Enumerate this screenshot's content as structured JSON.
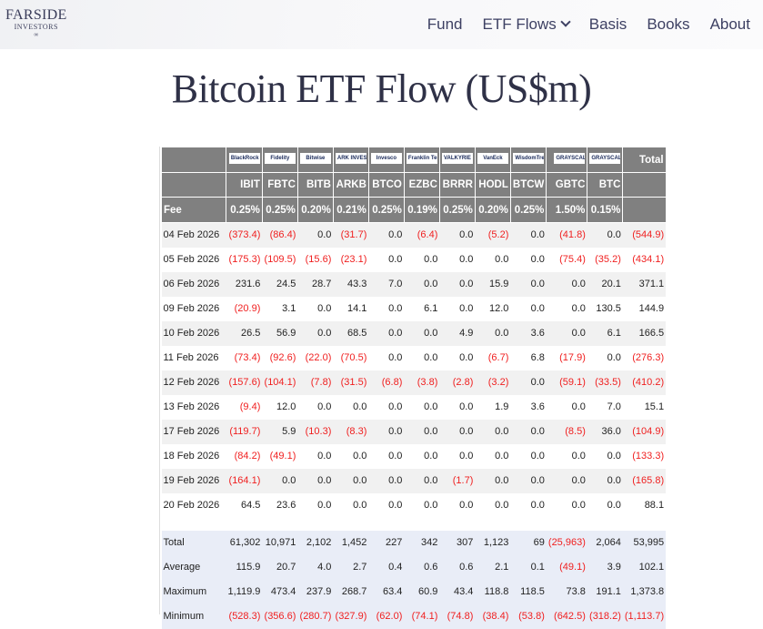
{
  "nav": {
    "logo": {
      "line1": "FARSIDE",
      "line2": "INVESTORS",
      "line3": "∞"
    },
    "items": [
      "Fund",
      "ETF Flows",
      "Basis",
      "Books",
      "About"
    ]
  },
  "page_title": "Bitcoin ETF Flow (US$m)",
  "table": {
    "logos": [
      "BlackRock",
      "Fidelity",
      "Bitwise",
      "ARK INVEST",
      "Invesco",
      "Franklin Templeton",
      "VALKYRIE",
      "VanEck",
      "WisdomTree",
      "GRAYSCALE",
      "GRAYSCALE"
    ],
    "total_label": "Total",
    "tickers": [
      "IBIT",
      "FBTC",
      "BITB",
      "ARKB",
      "BTCO",
      "EZBC",
      "BRRR",
      "HODL",
      "BTCW",
      "GBTC",
      "BTC"
    ],
    "fee_label": "Fee",
    "fees": [
      "0.25%",
      "0.25%",
      "0.20%",
      "0.21%",
      "0.25%",
      "0.19%",
      "0.25%",
      "0.20%",
      "0.25%",
      "1.50%",
      "0.15%"
    ],
    "rows": [
      [
        "04 Feb 2026",
        "(373.4)",
        "(86.4)",
        "0.0",
        "(31.7)",
        "0.0",
        "(6.4)",
        "0.0",
        "(5.2)",
        "0.0",
        "(41.8)",
        "0.0",
        "(544.9)"
      ],
      [
        "05 Feb 2026",
        "(175.3)",
        "(109.5)",
        "(15.6)",
        "(23.1)",
        "0.0",
        "0.0",
        "0.0",
        "0.0",
        "0.0",
        "(75.4)",
        "(35.2)",
        "(434.1)"
      ],
      [
        "06 Feb 2026",
        "231.6",
        "24.5",
        "28.7",
        "43.3",
        "7.0",
        "0.0",
        "0.0",
        "15.9",
        "0.0",
        "0.0",
        "20.1",
        "371.1"
      ],
      [
        "09 Feb 2026",
        "(20.9)",
        "3.1",
        "0.0",
        "14.1",
        "0.0",
        "6.1",
        "0.0",
        "12.0",
        "0.0",
        "0.0",
        "130.5",
        "144.9"
      ],
      [
        "10 Feb 2026",
        "26.5",
        "56.9",
        "0.0",
        "68.5",
        "0.0",
        "0.0",
        "4.9",
        "0.0",
        "3.6",
        "0.0",
        "6.1",
        "166.5"
      ],
      [
        "11 Feb 2026",
        "(73.4)",
        "(92.6)",
        "(22.0)",
        "(70.5)",
        "0.0",
        "0.0",
        "0.0",
        "(6.7)",
        "6.8",
        "(17.9)",
        "0.0",
        "(276.3)"
      ],
      [
        "12 Feb 2026",
        "(157.6)",
        "(104.1)",
        "(7.8)",
        "(31.5)",
        "(6.8)",
        "(3.8)",
        "(2.8)",
        "(3.2)",
        "0.0",
        "(59.1)",
        "(33.5)",
        "(410.2)"
      ],
      [
        "13 Feb 2026",
        "(9.4)",
        "12.0",
        "0.0",
        "0.0",
        "0.0",
        "0.0",
        "0.0",
        "1.9",
        "3.6",
        "0.0",
        "7.0",
        "15.1"
      ],
      [
        "17 Feb 2026",
        "(119.7)",
        "5.9",
        "(10.3)",
        "(8.3)",
        "0.0",
        "0.0",
        "0.0",
        "0.0",
        "0.0",
        "(8.5)",
        "36.0",
        "(104.9)"
      ],
      [
        "18 Feb 2026",
        "(84.2)",
        "(49.1)",
        "0.0",
        "0.0",
        "0.0",
        "0.0",
        "0.0",
        "0.0",
        "0.0",
        "0.0",
        "0.0",
        "(133.3)"
      ],
      [
        "19 Feb 2026",
        "(164.1)",
        "0.0",
        "0.0",
        "0.0",
        "0.0",
        "0.0",
        "(1.7)",
        "0.0",
        "0.0",
        "0.0",
        "0.0",
        "(165.8)"
      ],
      [
        "20 Feb 2026",
        "64.5",
        "23.6",
        "0.0",
        "0.0",
        "0.0",
        "0.0",
        "0.0",
        "0.0",
        "0.0",
        "0.0",
        "0.0",
        "88.1"
      ]
    ],
    "summary": [
      [
        "Total",
        "61,302",
        "10,971",
        "2,102",
        "1,452",
        "227",
        "342",
        "307",
        "1,123",
        "69",
        "(25,963)",
        "2,064",
        "53,995"
      ],
      [
        "Average",
        "115.9",
        "20.7",
        "4.0",
        "2.7",
        "0.4",
        "0.6",
        "0.6",
        "2.1",
        "0.1",
        "(49.1)",
        "3.9",
        "102.1"
      ],
      [
        "Maximum",
        "1,119.9",
        "473.4",
        "237.9",
        "268.7",
        "63.4",
        "60.9",
        "43.4",
        "118.8",
        "118.5",
        "73.8",
        "191.1",
        "1,373.8"
      ],
      [
        "Minimum",
        "(528.3)",
        "(356.6)",
        "(280.7)",
        "(327.9)",
        "(62.0)",
        "(74.1)",
        "(74.8)",
        "(38.4)",
        "(53.8)",
        "(642.5)",
        "(318.2)",
        "(1,113.7)"
      ]
    ]
  },
  "colors": {
    "negative": "#f02020",
    "header_bg": "#808080",
    "summary_bg": "#e9edf7"
  }
}
